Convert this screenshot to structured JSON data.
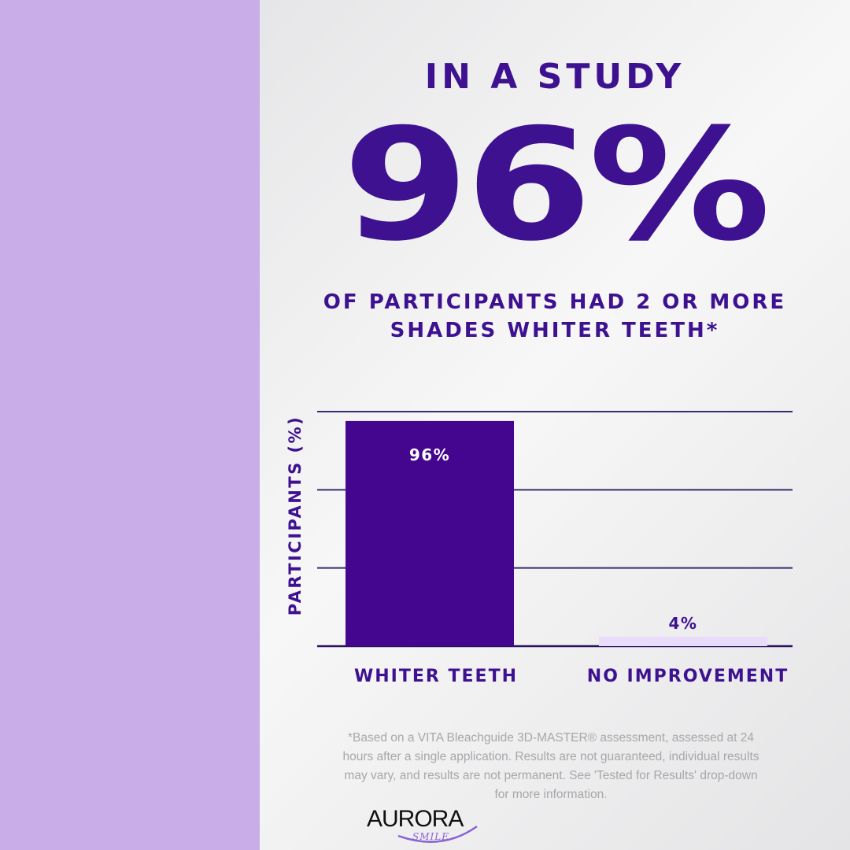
{
  "colors": {
    "left_panel": "#c9ade8",
    "primary_purple": "#3d1190",
    "bar_primary": "#44068f",
    "bar_secondary": "#e9dcfb",
    "footnote_gray": "#a7a7ab"
  },
  "headline": {
    "kicker": "IN A STUDY",
    "big_stat": "96%",
    "subhead_line1": "OF PARTICIPANTS HAD 2 OR MORE",
    "subhead_line2": "SHADES WHITER TEETH*"
  },
  "chart_data": {
    "type": "bar",
    "categories": [
      "WHITER TEETH",
      "NO IMPROVEMENT"
    ],
    "values": [
      96,
      4
    ],
    "data_labels": [
      "96%",
      "4%"
    ],
    "ylabel": "PARTICIPANTS (%)",
    "ylim": [
      0,
      100
    ],
    "grid": true
  },
  "footnote": {
    "line1": "*Based on a VITA Bleachguide 3D-MASTER® assessment, assessed at 24",
    "line2": "hours after a single application. Results are not guaranteed, individual results",
    "line3": "may vary, and results are not permanent. See 'Tested for Results' drop-down",
    "line4": "for more information."
  },
  "logo": {
    "word": "AURORA",
    "sub": "SMILE"
  }
}
